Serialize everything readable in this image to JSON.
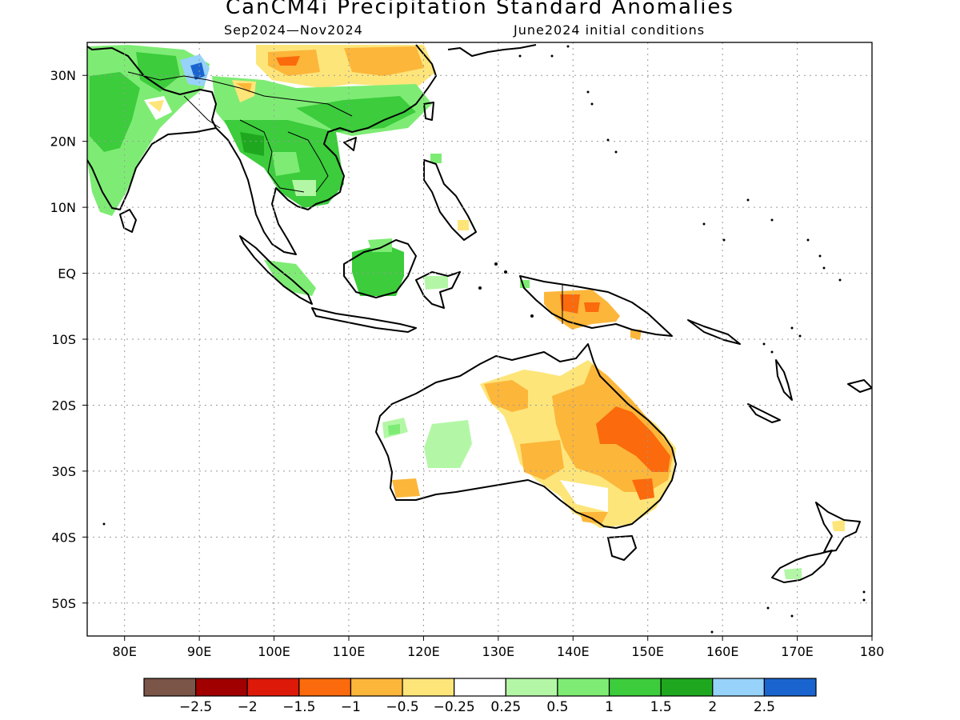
{
  "title": "CanCM4i Precipitation Standard Anomalies",
  "subtitle_left": "Sep2024—Nov2024",
  "subtitle_right": "June2024 initial conditions",
  "map": {
    "lon_range": [
      75,
      180
    ],
    "lat_range": [
      -55,
      35
    ],
    "lon_ticks": [
      "80E",
      "90E",
      "100E",
      "110E",
      "120E",
      "130E",
      "140E",
      "150E",
      "160E",
      "170E",
      "180"
    ],
    "lat_ticks": [
      "30N",
      "20N",
      "10N",
      "EQ",
      "10S",
      "20S",
      "30S",
      "40S",
      "50S"
    ],
    "grid": "dotted"
  },
  "colorbar": {
    "labels": [
      "−2.5",
      "−2",
      "−1.5",
      "−1",
      "−0.5",
      "−0.25",
      "0.25",
      "0.5",
      "1",
      "1.5",
      "2",
      "2.5"
    ],
    "colors": [
      "#7a5548",
      "#a00000",
      "#dd1a0a",
      "#fb6a0c",
      "#fcb63a",
      "#fde57a",
      "#ffffff",
      "#b3f7a6",
      "#7eec74",
      "#3ccc3c",
      "#1fa81f",
      "#96d2fa",
      "#1a64d0"
    ]
  },
  "anomaly_regions": [
    {
      "name": "south-asia-wet",
      "value": 1.0,
      "color": "#3ccc3c"
    },
    {
      "name": "indochina-wet",
      "value": 1.0,
      "color": "#3ccc3c"
    },
    {
      "name": "tibet-wet-max",
      "value": 2.0,
      "color": "#96d2fa"
    },
    {
      "name": "china-dry",
      "value": -0.5,
      "color": "#fcb63a"
    },
    {
      "name": "borneo-wet",
      "value": 1.0,
      "color": "#3ccc3c"
    },
    {
      "name": "new-guinea-dry",
      "value": -0.5,
      "color": "#fcb63a"
    },
    {
      "name": "eastern-australia-dry",
      "value": -1.0,
      "color": "#fb6a0c"
    },
    {
      "name": "western-australia-wet",
      "value": 0.5,
      "color": "#b3f7a6"
    },
    {
      "name": "new-zealand-wet",
      "value": 0.5,
      "color": "#b3f7a6"
    }
  ]
}
